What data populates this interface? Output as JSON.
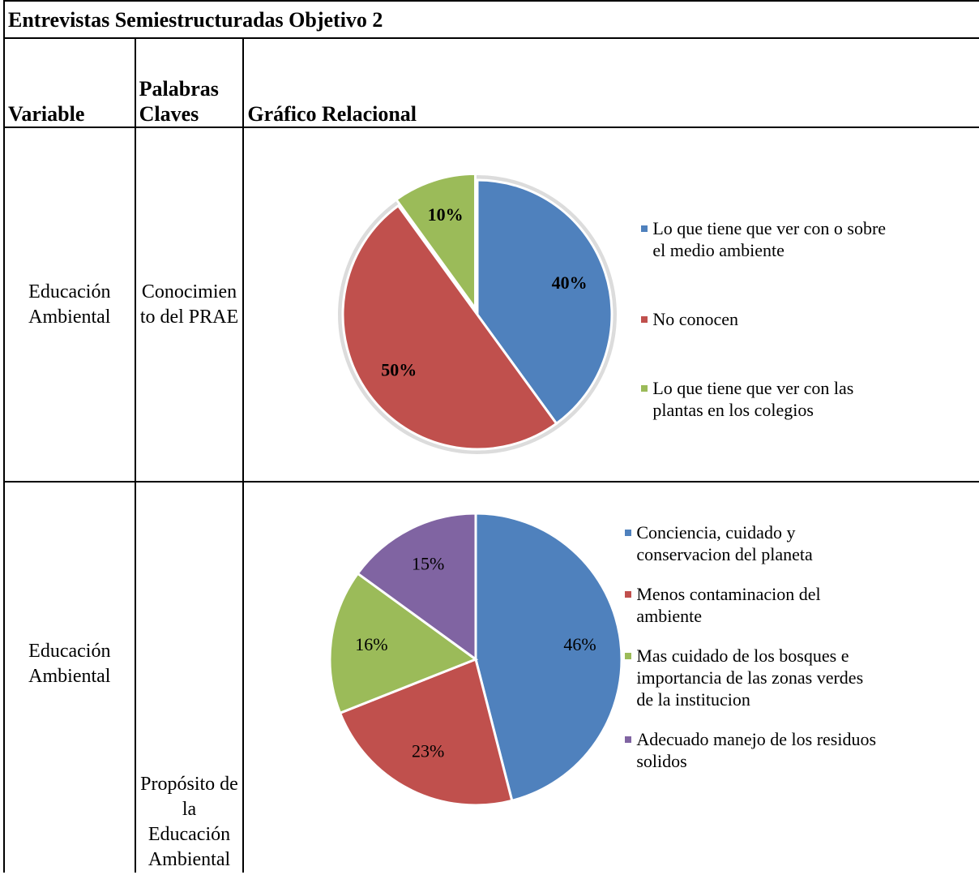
{
  "table": {
    "title": "Entrevistas Semiestructuradas Objetivo 2",
    "header": [
      "Variable",
      "Palabras Claves",
      "Gráfico Relacional"
    ],
    "rows": [
      {
        "variable": "Educación Ambiental",
        "keywords": "Conocimiento del PRAE",
        "chart": {
          "type": "pie",
          "bold_labels": true,
          "explode": [
            0,
            0,
            8
          ],
          "categories": [
            "Lo que tiene que ver con o sobre  el medio ambiente",
            "No conocen",
            "Lo que tiene que ver con las plantas en los colegios"
          ],
          "values": [
            40,
            50,
            10
          ],
          "value_labels": [
            "40%",
            "50%",
            "10%"
          ],
          "colors": [
            "#4f81bd",
            "#c0504d",
            "#9bbb59"
          ]
        }
      },
      {
        "variable": "Educación Ambiental",
        "keywords": "Propósito de la Educación Ambiental",
        "chart": {
          "type": "pie",
          "bold_labels": false,
          "explode": [
            0,
            0,
            0,
            0
          ],
          "categories": [
            "Conciencia, cuidado y conservacion del planeta",
            "Menos contaminacion del ambiente",
            "Mas cuidado de los bosques e importancia de las zonas verdes de la institucion",
            "Adecuado manejo de los residuos solidos"
          ],
          "values": [
            46,
            23,
            16,
            15
          ],
          "value_labels": [
            "46%",
            "23%",
            "16%",
            "15%"
          ],
          "colors": [
            "#4f81bd",
            "#c0504d",
            "#9bbb59",
            "#8064a2"
          ]
        }
      }
    ]
  }
}
